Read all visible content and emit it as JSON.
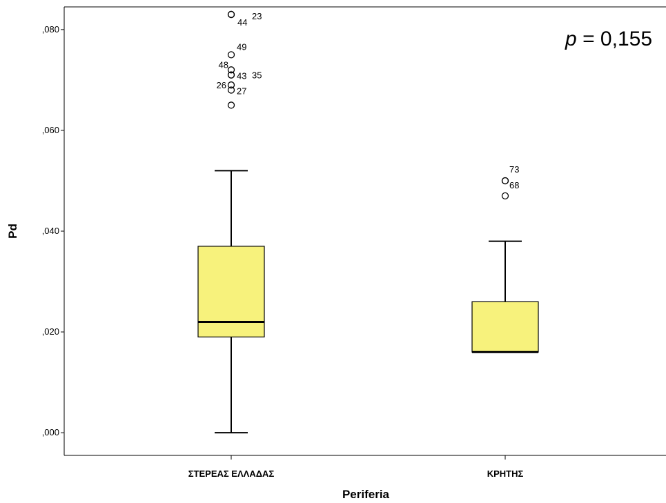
{
  "chart_data": {
    "type": "boxplot",
    "xlabel": "Periferia",
    "ylabel": "Pd",
    "ylim": [
      -0.0045,
      0.0845
    ],
    "yticks": [
      {
        "value": 0.0,
        "label": ",000"
      },
      {
        "value": 0.02,
        "label": ",020"
      },
      {
        "value": 0.04,
        "label": ",040"
      },
      {
        "value": 0.06,
        "label": ",060"
      },
      {
        "value": 0.08,
        "label": ",080"
      }
    ],
    "annotation": {
      "p_symbol": "p",
      "p_text": " = 0,155"
    },
    "box_color": "#F7F27C",
    "categories": [
      "ΣΤΕΡΕΑΣ ΕΛΛΑΔΑΣ",
      "ΚΡΗΤΗΣ"
    ],
    "boxes": [
      {
        "category": "ΣΤΕΡΕΑΣ ΕΛΛΑΔΑΣ",
        "whisker_low": 0.0,
        "q1": 0.019,
        "median": 0.022,
        "q3": 0.037,
        "whisker_high": 0.052,
        "outliers": [
          {
            "value": 0.083,
            "label": "44"
          },
          {
            "value": 0.083,
            "label": "23"
          },
          {
            "value": 0.075,
            "label": "49"
          },
          {
            "value": 0.072,
            "label": "48"
          },
          {
            "value": 0.071,
            "label": "43"
          },
          {
            "value": 0.071,
            "label": "35"
          },
          {
            "value": 0.069,
            "label": "26"
          },
          {
            "value": 0.068,
            "label": "27"
          },
          {
            "value": 0.065,
            "label": ""
          }
        ]
      },
      {
        "category": "ΚΡΗΤΗΣ",
        "whisker_low": 0.016,
        "q1": 0.016,
        "median": 0.016,
        "q3": 0.026,
        "whisker_high": 0.038,
        "outliers": [
          {
            "value": 0.05,
            "label": "73"
          },
          {
            "value": 0.05,
            "label": "68"
          },
          {
            "value": 0.047,
            "label": ""
          }
        ]
      }
    ]
  }
}
